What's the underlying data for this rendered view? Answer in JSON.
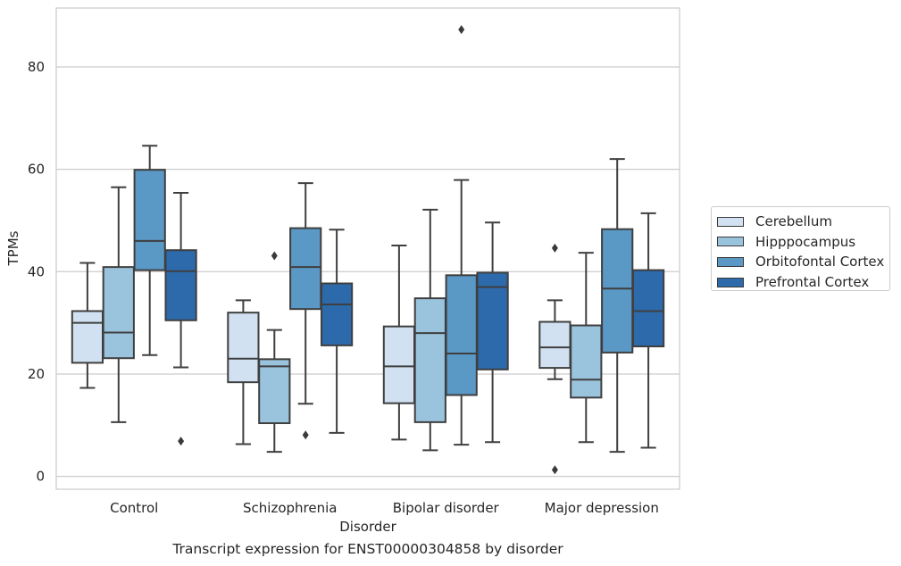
{
  "chart_data": {
    "type": "box",
    "caption": "Transcript expression for ENST00000304858 by disorder",
    "xlabel": "Disorder",
    "ylabel": "TPMs",
    "ylim": [
      -2.5,
      91.5
    ],
    "yticks": [
      0,
      20,
      40,
      60,
      80
    ],
    "grid": "horizontal",
    "legend_position": "right",
    "categories": [
      "Control",
      "Schizophrenia",
      "Bipolar disorder",
      "Major depression"
    ],
    "series": [
      {
        "name": "Cerebellum",
        "color": "#d1e1f1",
        "boxes": [
          {
            "whisker_low": 17.3,
            "q1": 22.2,
            "median": 30.0,
            "q3": 32.3,
            "whisker_high": 41.7,
            "outliers": []
          },
          {
            "whisker_low": 6.3,
            "q1": 18.4,
            "median": 23.0,
            "q3": 32.0,
            "whisker_high": 34.4,
            "outliers": []
          },
          {
            "whisker_low": 7.2,
            "q1": 14.3,
            "median": 21.5,
            "q3": 29.3,
            "whisker_high": 45.1,
            "outliers": []
          },
          {
            "whisker_low": 19.0,
            "q1": 21.2,
            "median": 25.2,
            "q3": 30.2,
            "whisker_high": 34.4,
            "outliers": [
              1.3,
              44.6
            ]
          }
        ]
      },
      {
        "name": "Hipppocampus",
        "color": "#9ac3dd",
        "boxes": [
          {
            "whisker_low": 10.6,
            "q1": 23.1,
            "median": 28.1,
            "q3": 40.9,
            "whisker_high": 56.5,
            "outliers": []
          },
          {
            "whisker_low": 4.8,
            "q1": 10.4,
            "median": 21.5,
            "q3": 22.9,
            "whisker_high": 28.6,
            "outliers": [
              43.1
            ]
          },
          {
            "whisker_low": 5.1,
            "q1": 10.6,
            "median": 28.0,
            "q3": 34.8,
            "whisker_high": 52.1,
            "outliers": []
          },
          {
            "whisker_low": 6.7,
            "q1": 15.4,
            "median": 18.9,
            "q3": 29.5,
            "whisker_high": 43.7,
            "outliers": []
          }
        ]
      },
      {
        "name": "Orbitofontal Cortex",
        "color": "#5a98c5",
        "boxes": [
          {
            "whisker_low": 23.7,
            "q1": 40.3,
            "median": 46.0,
            "q3": 59.9,
            "whisker_high": 64.6,
            "outliers": []
          },
          {
            "whisker_low": 14.2,
            "q1": 32.7,
            "median": 40.9,
            "q3": 48.5,
            "whisker_high": 57.3,
            "outliers": [
              8.1
            ]
          },
          {
            "whisker_low": 6.2,
            "q1": 15.9,
            "median": 24.0,
            "q3": 39.3,
            "whisker_high": 57.9,
            "outliers": [
              87.3
            ]
          },
          {
            "whisker_low": 4.8,
            "q1": 24.2,
            "median": 36.7,
            "q3": 48.3,
            "whisker_high": 62.0,
            "outliers": []
          }
        ]
      },
      {
        "name": "Prefrontal Cortex",
        "color": "#2c6aab",
        "boxes": [
          {
            "whisker_low": 21.3,
            "q1": 30.5,
            "median": 40.1,
            "q3": 44.2,
            "whisker_high": 55.4,
            "outliers": [
              6.9
            ]
          },
          {
            "whisker_low": 8.5,
            "q1": 25.6,
            "median": 33.6,
            "q3": 37.7,
            "whisker_high": 48.2,
            "outliers": []
          },
          {
            "whisker_low": 6.7,
            "q1": 20.9,
            "median": 37.0,
            "q3": 39.8,
            "whisker_high": 49.6,
            "outliers": []
          },
          {
            "whisker_low": 5.6,
            "q1": 25.4,
            "median": 32.3,
            "q3": 40.3,
            "whisker_high": 51.4,
            "outliers": []
          }
        ]
      }
    ]
  }
}
